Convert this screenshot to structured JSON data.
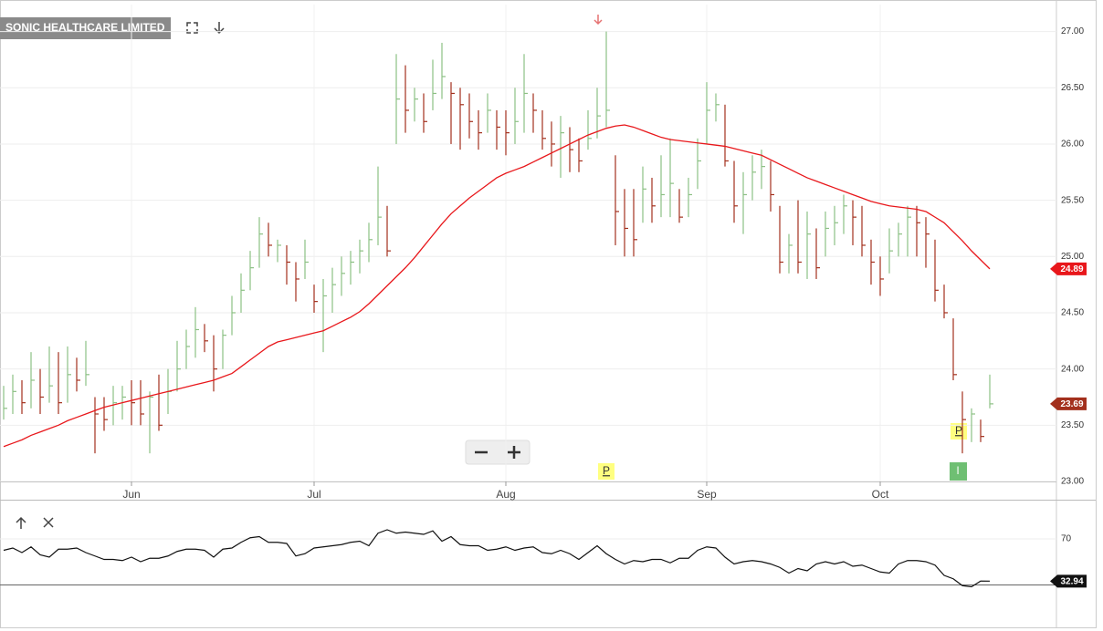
{
  "chart_data": [
    {
      "type": "ohlc",
      "title": "SONIC HEALTHCARE LIMITED",
      "categories": [
        null,
        null,
        null,
        null,
        null,
        null,
        null,
        null,
        null,
        null,
        null,
        null,
        null,
        null,
        "Jun",
        null,
        null,
        null,
        null,
        null,
        null,
        null,
        null,
        null,
        null,
        null,
        null,
        null,
        null,
        null,
        null,
        null,
        null,
        null,
        "Jul",
        null,
        null,
        null,
        null,
        null,
        null,
        null,
        null,
        null,
        null,
        null,
        null,
        null,
        null,
        null,
        null,
        null,
        null,
        null,
        null,
        "Aug",
        null,
        null,
        null,
        null,
        null,
        null,
        null,
        null,
        null,
        null,
        null,
        null,
        null,
        null,
        null,
        null,
        null,
        null,
        null,
        null,
        null,
        "Sep",
        null,
        null,
        null,
        null,
        null,
        null,
        null,
        null,
        null,
        null,
        null,
        null,
        null,
        null,
        null,
        null,
        null,
        null,
        "Oct",
        null,
        null,
        null,
        null,
        null,
        null,
        null,
        null,
        null,
        null,
        null,
        null
      ],
      "high": [
        23.85,
        23.95,
        23.9,
        24.15,
        24.0,
        24.2,
        24.15,
        24.2,
        24.1,
        24.25,
        23.75,
        23.75,
        23.85,
        23.85,
        23.9,
        23.9,
        23.8,
        23.95,
        24.0,
        24.25,
        24.35,
        24.55,
        24.4,
        24.3,
        24.35,
        24.65,
        24.85,
        25.05,
        25.35,
        25.3,
        25.15,
        25.1,
        24.95,
        25.15,
        24.75,
        24.8,
        24.9,
        25.0,
        25.05,
        25.15,
        25.3,
        25.8,
        25.45,
        26.8,
        26.7,
        26.5,
        26.45,
        26.75,
        26.9,
        26.55,
        26.5,
        26.45,
        26.3,
        26.45,
        26.3,
        26.3,
        26.5,
        26.8,
        26.45,
        26.3,
        26.2,
        26.25,
        26.15,
        26.05,
        26.3,
        26.5,
        27.0,
        25.9,
        25.6,
        25.6,
        25.8,
        25.7,
        25.9,
        26.05,
        25.6,
        25.7,
        26.05,
        26.55,
        26.45,
        26.35,
        25.85,
        25.75,
        25.9,
        25.95,
        25.85,
        25.45,
        25.2,
        25.5,
        25.4,
        25.25,
        25.4,
        25.45,
        25.55,
        25.5,
        25.45,
        25.15,
        25.0,
        25.25,
        25.3,
        25.45,
        25.45,
        25.35,
        25.15,
        24.75,
        24.45,
        23.8,
        23.65,
        23.55,
        23.95
      ],
      "low": [
        23.55,
        23.6,
        23.6,
        23.65,
        23.6,
        23.7,
        23.6,
        23.7,
        23.8,
        23.85,
        23.25,
        23.45,
        23.5,
        23.55,
        23.5,
        23.5,
        23.25,
        23.45,
        23.6,
        23.8,
        24.0,
        24.1,
        24.15,
        23.8,
        24.0,
        24.3,
        24.5,
        24.7,
        24.9,
        25.0,
        24.95,
        24.75,
        24.6,
        24.8,
        24.5,
        24.15,
        24.5,
        24.65,
        24.75,
        24.85,
        24.95,
        25.1,
        25.0,
        26.0,
        26.1,
        26.2,
        26.1,
        26.3,
        26.4,
        26.0,
        25.95,
        26.05,
        25.95,
        26.1,
        25.95,
        25.9,
        26.0,
        26.1,
        26.1,
        25.95,
        25.8,
        25.7,
        25.75,
        25.75,
        25.95,
        26.05,
        26.15,
        25.1,
        25.0,
        25.0,
        25.3,
        25.3,
        25.35,
        25.35,
        25.3,
        25.35,
        25.6,
        26.0,
        26.2,
        25.8,
        25.3,
        25.2,
        25.5,
        25.6,
        25.4,
        24.85,
        24.85,
        24.85,
        24.8,
        24.8,
        25.0,
        25.1,
        25.2,
        25.1,
        25.0,
        24.75,
        24.65,
        24.85,
        25.0,
        25.0,
        25.0,
        24.9,
        24.6,
        24.45,
        23.9,
        23.25,
        23.35,
        23.35,
        23.65
      ],
      "close": [
        23.65,
        23.8,
        23.7,
        23.9,
        23.75,
        23.85,
        23.7,
        23.95,
        23.9,
        23.95,
        23.6,
        23.55,
        23.7,
        23.75,
        23.7,
        23.6,
        23.75,
        23.5,
        23.8,
        24.0,
        24.2,
        24.35,
        24.25,
        24.0,
        24.3,
        24.5,
        24.7,
        24.9,
        25.2,
        25.1,
        25.1,
        24.95,
        24.8,
        24.95,
        24.6,
        24.65,
        24.75,
        24.85,
        24.95,
        25.05,
        25.15,
        25.35,
        25.05,
        26.4,
        26.3,
        26.4,
        26.2,
        26.45,
        26.6,
        26.45,
        26.35,
        26.2,
        26.1,
        26.3,
        26.15,
        26.1,
        26.2,
        26.45,
        26.3,
        26.05,
        26.0,
        26.1,
        25.95,
        25.85,
        26.05,
        26.25,
        26.3,
        25.4,
        25.25,
        25.15,
        25.6,
        25.45,
        25.55,
        25.65,
        25.35,
        25.55,
        25.85,
        26.3,
        26.35,
        25.85,
        25.45,
        25.55,
        25.75,
        25.8,
        25.55,
        24.95,
        25.1,
        24.95,
        25.2,
        24.9,
        25.25,
        25.3,
        25.45,
        25.35,
        25.1,
        24.95,
        24.8,
        25.05,
        25.2,
        25.35,
        25.3,
        25.2,
        24.7,
        24.5,
        23.95,
        23.55,
        23.6,
        23.4,
        23.69
      ],
      "up_color": "#8cc084",
      "down_color": "#a3301d",
      "overlay": {
        "color": "#e8171b",
        "values": [
          23.31,
          23.34,
          23.37,
          23.41,
          23.44,
          23.47,
          23.5,
          23.54,
          23.57,
          23.6,
          23.63,
          23.66,
          23.68,
          23.7,
          23.72,
          23.74,
          23.76,
          23.78,
          23.8,
          23.82,
          23.84,
          23.86,
          23.88,
          23.9,
          23.93,
          23.96,
          24.02,
          24.08,
          24.14,
          24.2,
          24.24,
          24.26,
          24.28,
          24.3,
          24.32,
          24.34,
          24.38,
          24.42,
          24.46,
          24.51,
          24.58,
          24.66,
          24.74,
          24.82,
          24.9,
          24.99,
          25.09,
          25.19,
          25.29,
          25.38,
          25.45,
          25.52,
          25.58,
          25.64,
          25.7,
          25.74,
          25.77,
          25.8,
          25.84,
          25.88,
          25.92,
          25.96,
          26.0,
          26.04,
          26.08,
          26.11,
          26.14,
          26.16,
          26.17,
          26.15,
          26.12,
          26.09,
          26.06,
          26.04,
          26.03,
          26.02,
          26.01,
          26.0,
          25.99,
          25.98,
          25.96,
          25.94,
          25.92,
          25.9,
          25.86,
          25.82,
          25.78,
          25.74,
          25.7,
          25.67,
          25.64,
          25.61,
          25.58,
          25.55,
          25.52,
          25.49,
          25.47,
          25.45,
          25.44,
          25.43,
          25.42,
          25.4,
          25.35,
          25.3,
          25.22,
          25.14,
          25.05,
          24.97,
          24.89
        ]
      },
      "annotations": [
        "P",
        "P",
        "I"
      ],
      "ylim": [
        23,
        27.24
      ],
      "yticks": [
        {
          "value": 23,
          "label": "23.00"
        },
        {
          "value": 23.5,
          "label": "23.50"
        },
        {
          "value": 24,
          "label": "24.00"
        },
        {
          "value": 24.5,
          "label": "24.50"
        },
        {
          "value": 25,
          "label": "25.00"
        },
        {
          "value": 25.5,
          "label": "25.50"
        },
        {
          "value": 26,
          "label": "26.00"
        },
        {
          "value": 26.5,
          "label": "26.50"
        },
        {
          "value": 27,
          "label": "27.00"
        }
      ],
      "grid": true
    },
    {
      "type": "line",
      "color": "#111111",
      "values": [
        60,
        62,
        58,
        63,
        56,
        54,
        61,
        61,
        62,
        58,
        55,
        52,
        52,
        51,
        54,
        50,
        53,
        53,
        55,
        59,
        61,
        61,
        60,
        54,
        61,
        62,
        67,
        71,
        72,
        67,
        67,
        66,
        55,
        57,
        62,
        63,
        64,
        65,
        67,
        68,
        64,
        75,
        78,
        75,
        76,
        75,
        74,
        77,
        68,
        72,
        65,
        64,
        64,
        60,
        61,
        63,
        60,
        62,
        63,
        58,
        57,
        60,
        57,
        52,
        58,
        64,
        57,
        52,
        48,
        51,
        50,
        52,
        52,
        49,
        53,
        53,
        60,
        63,
        62,
        54,
        48,
        50,
        51,
        50,
        48,
        45,
        40,
        44,
        42,
        48,
        50,
        48,
        50,
        46,
        47,
        44,
        41,
        40,
        48,
        51,
        51,
        50,
        47,
        38,
        35,
        29,
        28,
        33,
        32.94
      ],
      "ylim": [
        0,
        100
      ],
      "yticks": [
        70
      ],
      "grid": true
    }
  ]
}
